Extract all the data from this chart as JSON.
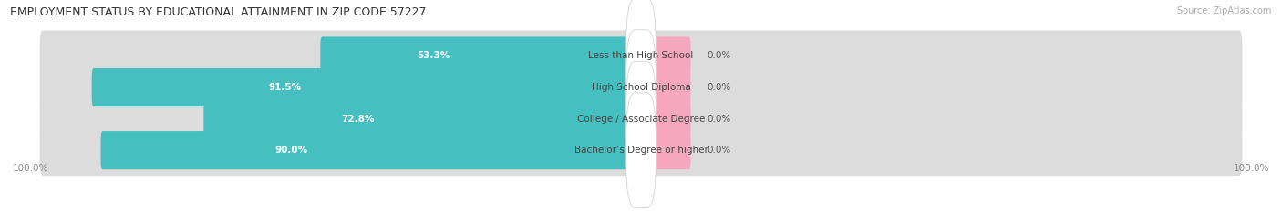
{
  "title": "EMPLOYMENT STATUS BY EDUCATIONAL ATTAINMENT IN ZIP CODE 57227",
  "source": "Source: ZipAtlas.com",
  "categories": [
    "Less than High School",
    "High School Diploma",
    "College / Associate Degree",
    "Bachelor’s Degree or higher"
  ],
  "in_labor_force": [
    53.3,
    91.5,
    72.8,
    90.0
  ],
  "unemployed": [
    0.0,
    0.0,
    0.0,
    0.0
  ],
  "unemployed_display": [
    8.0,
    8.0,
    8.0,
    8.0
  ],
  "labor_force_color": "#45BFBF",
  "unemployed_color": "#F4A7BE",
  "bar_bg_color": "#DCDCDC",
  "bg_color": "#F5F5F5",
  "background_color": "#FFFFFF",
  "axis_label_left": "100.0%",
  "axis_label_right": "100.0%",
  "title_fontsize": 9,
  "source_fontsize": 7,
  "value_fontsize": 7.5,
  "cat_fontsize": 7.5,
  "legend_fontsize": 7.5,
  "bar_height": 0.62,
  "x_max": 100
}
